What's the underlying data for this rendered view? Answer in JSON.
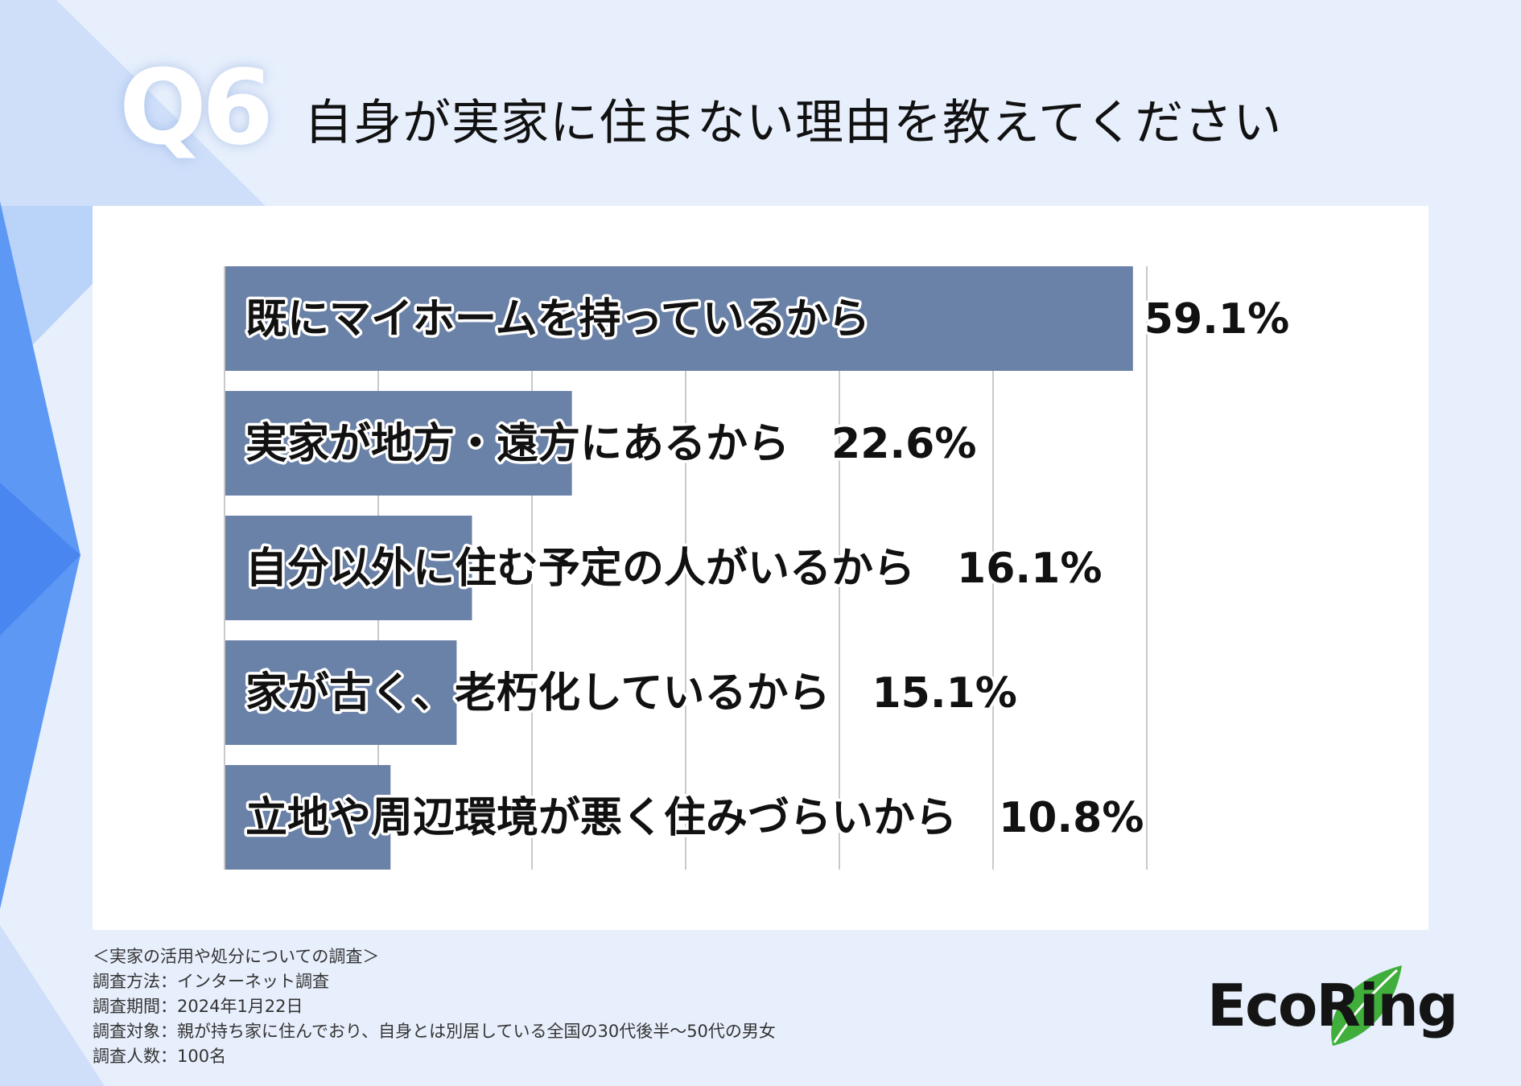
{
  "header": {
    "question_number": "Q6",
    "title": "自身が実家に住まない理由を教えてください"
  },
  "chart_data": {
    "type": "bar",
    "orientation": "horizontal",
    "categories": [
      "既にマイホームを持っているから",
      "実家が地方・遠方にあるから",
      "自分以外に住む予定の人がいるから",
      "家が古く、老朽化しているから",
      "立地や周辺環境が悪く住みづらいから"
    ],
    "values": [
      59.1,
      22.6,
      16.1,
      15.1,
      10.8
    ],
    "value_labels": [
      "59.1%",
      "22.6%",
      "16.1%",
      "15.1%",
      "10.8%"
    ],
    "xlim": [
      0,
      60
    ],
    "grid": true,
    "bar_color": "#6b82a8",
    "title": "",
    "xlabel": "",
    "ylabel": ""
  },
  "footnote": {
    "survey_name": "＜実家の活用や処分についての調査＞",
    "method": "調査方法：インターネット調査",
    "period": "調査期間：2024年1月22日",
    "target": "調査対象：親が持ち家に住んでおり、自身とは別居している全国の30代後半〜50代の男女",
    "count": "調査人数：100名"
  },
  "logo": {
    "text": "EcoRing",
    "leaf_color": "#3fae3a"
  }
}
